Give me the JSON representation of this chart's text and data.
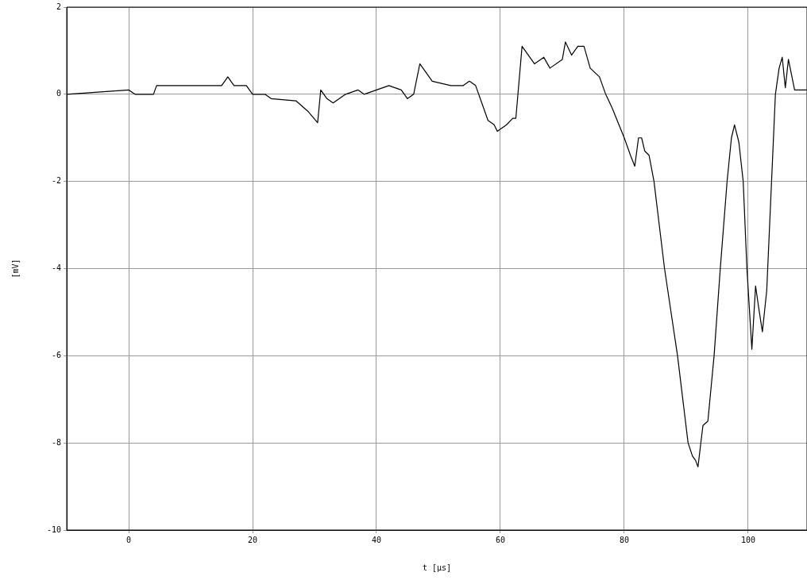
{
  "chart_data": {
    "type": "line",
    "xlabel": "t [µs]",
    "ylabel": "[mV]",
    "xlim": [
      -10,
      109.5
    ],
    "ylim": [
      -10,
      2
    ],
    "xticks": [
      0,
      20,
      40,
      60,
      80,
      100
    ],
    "yticks": [
      -10,
      -8,
      -6,
      -4,
      -2,
      0,
      2
    ],
    "grid": true,
    "legend": false,
    "marker": "none",
    "line_style": "solid",
    "series": [
      {
        "color": "#000000",
        "x": [
          -10,
          -5,
          0,
          1,
          4,
          4.5,
          10,
          15,
          16,
          17,
          19,
          20,
          22,
          23,
          27,
          29,
          30.5,
          31,
          32,
          33,
          35,
          37,
          38,
          40,
          42,
          44,
          45,
          46,
          47,
          48,
          49,
          52,
          54,
          55,
          56,
          57,
          58,
          59,
          59.5,
          61,
          62,
          62.5,
          63.5,
          64.5,
          65.5,
          67,
          68,
          70,
          70.5,
          71.5,
          72.5,
          73.5,
          74.5,
          76,
          77,
          78,
          80,
          81,
          81.7,
          82.3,
          82.8,
          83.3,
          84,
          84.8,
          86.5,
          88.6,
          90.3,
          91,
          91.5,
          91.9,
          92.7,
          93.5,
          94.5,
          95.5,
          96.6,
          97.3,
          97.8,
          98.5,
          99.2,
          99.8,
          100.6,
          101.2,
          101.7,
          102.3,
          103,
          104.4,
          105,
          105.5,
          106,
          106.5,
          107.5,
          109.5
        ],
        "values": [
          0,
          0.05,
          0.1,
          0,
          0,
          0.2,
          0.2,
          0.2,
          0.4,
          0.2,
          0.2,
          0,
          0,
          -0.1,
          -0.15,
          -0.4,
          -0.65,
          0.1,
          -0.1,
          -0.2,
          0,
          0.1,
          0,
          0.1,
          0.2,
          0.1,
          -0.1,
          0,
          0.7,
          0.5,
          0.3,
          0.2,
          0.2,
          0.3,
          0.2,
          -0.2,
          -0.6,
          -0.7,
          -0.85,
          -0.7,
          -0.55,
          -0.55,
          1.1,
          0.9,
          0.7,
          0.85,
          0.6,
          0.8,
          1.2,
          0.9,
          1.1,
          1.1,
          0.6,
          0.4,
          0,
          -0.3,
          -1.0,
          -1.4,
          -1.65,
          -1.0,
          -1.0,
          -1.3,
          -1.4,
          -2,
          -4,
          -6,
          -8,
          -8.3,
          -8.4,
          -8.55,
          -7.6,
          -7.5,
          -6,
          -4,
          -2,
          -1.0,
          -0.7,
          -1.1,
          -2,
          -4,
          -5.85,
          -4.4,
          -4.9,
          -5.45,
          -4.5,
          0,
          0.6,
          0.85,
          0.15,
          0.8,
          0.1,
          0.1
        ]
      }
    ]
  }
}
